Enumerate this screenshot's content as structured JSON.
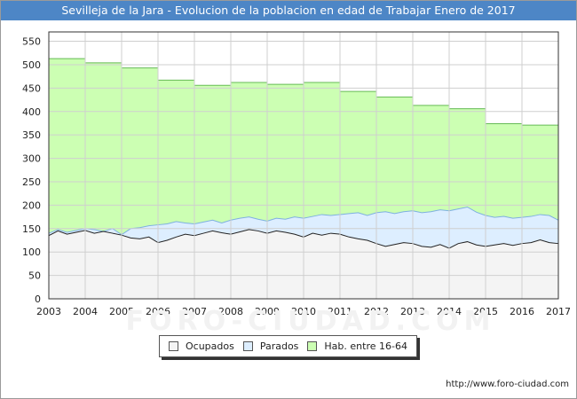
{
  "title": "Sevilleja de la Jara - Evolucion de la poblacion en edad de Trabajar Enero de 2017",
  "source_url": "http://www.foro-ciudad.com",
  "watermark": "FORO-CIUDAD.COM",
  "chart_data": {
    "type": "area",
    "x_ticks": [
      "2003",
      "2004",
      "2005",
      "2006",
      "2007",
      "2008",
      "2009",
      "2010",
      "2011",
      "2012",
      "2013",
      "2014",
      "2015",
      "2016",
      "2017"
    ],
    "y_ticks": [
      0,
      50,
      100,
      150,
      200,
      250,
      300,
      350,
      400,
      450,
      500,
      550
    ],
    "xlim": [
      2003,
      2017
    ],
    "ylim": [
      0,
      570
    ],
    "grid": true,
    "legend_position": "bottom",
    "series": [
      {
        "name": "Hab. entre 16-64",
        "color": "#ccffb3",
        "line_color": "#66bb55",
        "step": true,
        "x": [
          2003,
          2004,
          2005,
          2006,
          2007,
          2008,
          2009,
          2010,
          2011,
          2012,
          2013,
          2014,
          2015,
          2016,
          2017
        ],
        "values": [
          513,
          504,
          493,
          467,
          456,
          462,
          458,
          462,
          443,
          431,
          413,
          406,
          374,
          371,
          359
        ]
      },
      {
        "name": "Parados",
        "color": "#ddeeff",
        "line_color": "#7fb0e0",
        "x": [
          2003,
          2003.25,
          2003.5,
          2003.75,
          2004,
          2004.25,
          2004.5,
          2004.75,
          2005,
          2005.25,
          2005.5,
          2005.75,
          2006,
          2006.25,
          2006.5,
          2006.75,
          2007,
          2007.25,
          2007.5,
          2007.75,
          2008,
          2008.25,
          2008.5,
          2008.75,
          2009,
          2009.25,
          2009.5,
          2009.75,
          2010,
          2010.25,
          2010.5,
          2010.75,
          2011,
          2011.25,
          2011.5,
          2011.75,
          2012,
          2012.25,
          2012.5,
          2012.75,
          2013,
          2013.25,
          2013.5,
          2013.75,
          2014,
          2014.25,
          2014.5,
          2014.75,
          2015,
          2015.25,
          2015.5,
          2015.75,
          2016,
          2016.25,
          2016.5,
          2016.75,
          2017
        ],
        "values": [
          140,
          148,
          142,
          146,
          150,
          148,
          144,
          150,
          137,
          150,
          152,
          156,
          158,
          160,
          165,
          162,
          160,
          164,
          168,
          162,
          168,
          172,
          175,
          170,
          166,
          172,
          170,
          175,
          172,
          176,
          180,
          178,
          180,
          182,
          184,
          178,
          184,
          186,
          182,
          186,
          188,
          184,
          186,
          190,
          188,
          192,
          196,
          185,
          178,
          174,
          176,
          172,
          174,
          176,
          180,
          178,
          168
        ]
      },
      {
        "name": "Ocupados",
        "color": "#f4f4f4",
        "line_color": "#222222",
        "x": [
          2003,
          2003.25,
          2003.5,
          2003.75,
          2004,
          2004.25,
          2004.5,
          2004.75,
          2005,
          2005.25,
          2005.5,
          2005.75,
          2006,
          2006.25,
          2006.5,
          2006.75,
          2007,
          2007.25,
          2007.5,
          2007.75,
          2008,
          2008.25,
          2008.5,
          2008.75,
          2009,
          2009.25,
          2009.5,
          2009.75,
          2010,
          2010.25,
          2010.5,
          2010.75,
          2011,
          2011.25,
          2011.5,
          2011.75,
          2012,
          2012.25,
          2012.5,
          2012.75,
          2013,
          2013.25,
          2013.5,
          2013.75,
          2014,
          2014.25,
          2014.5,
          2014.75,
          2015,
          2015.25,
          2015.5,
          2015.75,
          2016,
          2016.25,
          2016.5,
          2016.75,
          2017
        ],
        "values": [
          135,
          145,
          138,
          142,
          146,
          140,
          144,
          140,
          136,
          130,
          128,
          132,
          120,
          125,
          132,
          138,
          135,
          140,
          145,
          141,
          138,
          143,
          148,
          145,
          140,
          145,
          142,
          138,
          132,
          140,
          136,
          140,
          138,
          132,
          128,
          125,
          118,
          112,
          116,
          120,
          118,
          112,
          110,
          116,
          108,
          118,
          122,
          115,
          112,
          115,
          118,
          114,
          118,
          120,
          126,
          120,
          118
        ]
      }
    ]
  },
  "legend": {
    "items": [
      {
        "label": "Ocupados",
        "color": "#f4f4f4"
      },
      {
        "label": "Parados",
        "color": "#ddeeff"
      },
      {
        "label": "Hab. entre 16-64",
        "color": "#ccffb3"
      }
    ]
  }
}
